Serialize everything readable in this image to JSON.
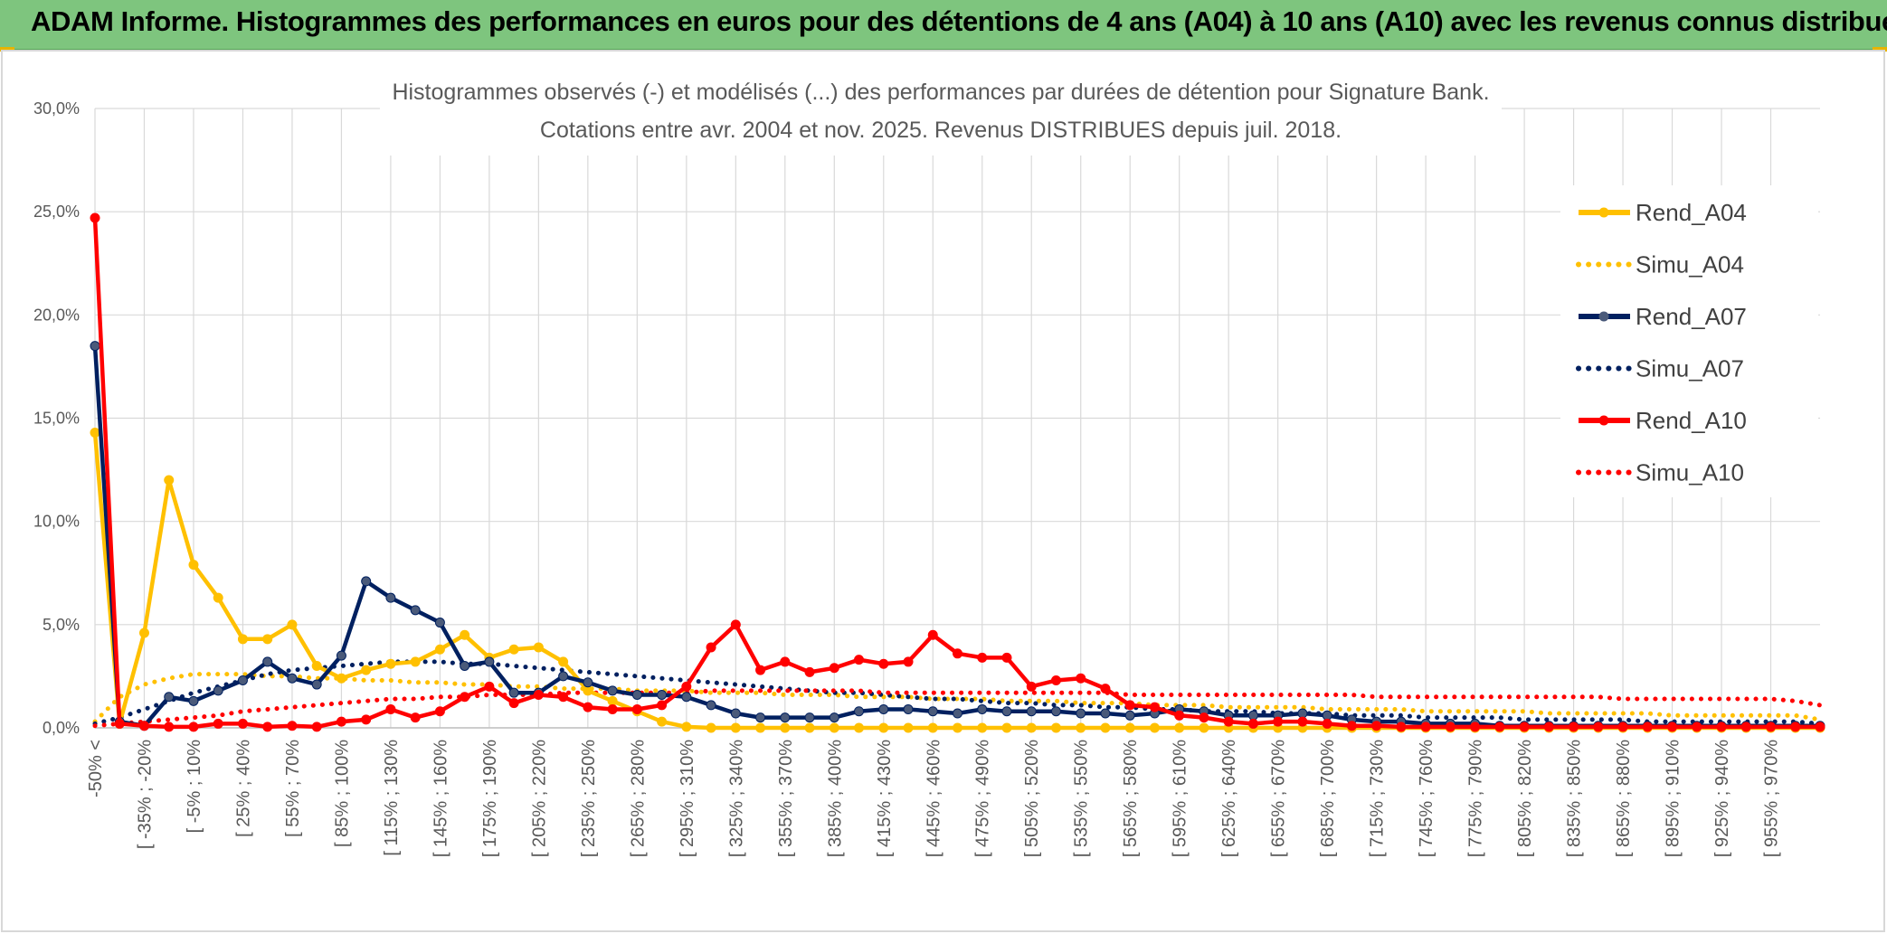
{
  "header": {
    "title": "ADAM Informe. Histogrammes des performances en euros pour des détentions de 4 ans (A04) à 10 ans (A10) avec les revenus connus distribués"
  },
  "chart_data": {
    "type": "line",
    "title_line1": "Histogrammes observés (-) et modélisés (...) des performances par durées de détention pour Signature Bank.",
    "title_line2": "Cotations entre avr. 2004 et nov. 2025. Revenus DISTRIBUES depuis juil. 2018.",
    "ylim": [
      0,
      30
    ],
    "yticks": [
      "0,0%",
      "5,0%",
      "10,0%",
      "15,0%",
      "20,0%",
      "25,0%",
      "30,0%"
    ],
    "grid": true,
    "legend_position": "right",
    "xtick_labels": [
      "-50% <",
      "[ -35% ; -20%",
      "[ -5% ; 10%",
      "[ 25% ; 40%",
      "[ 55% ; 70%",
      "[ 85% ; 100%",
      "[ 115% ; 130%",
      "[ 145% ; 160%",
      "[ 175% ; 190%",
      "[ 205% ; 220%",
      "[ 235% ; 250%",
      "[ 265% ; 280%",
      "[ 295% ; 310%",
      "[ 325% ; 340%",
      "[ 355% ; 370%",
      "[ 385% ; 400%",
      "[ 415% ; 430%",
      "[ 445% ; 460%",
      "[ 475% ; 490%",
      "[ 505% ; 520%",
      "[ 535% ; 550%",
      "[ 565% ; 580%",
      "[ 595% ; 610%",
      "[ 625% ; 640%",
      "[ 655% ; 670%",
      "[ 685% ; 700%",
      "[ 715% ; 730%",
      "[ 745% ; 760%",
      "[ 775% ; 790%",
      "[ 805% ; 820%",
      "[ 835% ; 850%",
      "[ 865% ; 880%",
      "[ 895% ; 910%",
      "[ 925% ; 940%",
      "[ 955% ; 970%"
    ],
    "series": [
      {
        "name": "Rend_A04",
        "style": "solid",
        "color": "#ffc000",
        "marker_color": "#ffc000",
        "values": [
          14.3,
          0.2,
          4.6,
          12.0,
          7.9,
          6.3,
          4.3,
          4.3,
          5.0,
          3.0,
          2.4,
          2.8,
          3.1,
          3.2,
          3.8,
          4.5,
          3.4,
          3.8,
          3.9,
          3.2,
          1.8,
          1.3,
          0.8,
          0.3,
          0.05,
          0,
          0,
          0,
          0,
          0,
          0,
          0,
          0,
          0,
          0,
          0,
          0,
          0,
          0,
          0,
          0,
          0,
          0,
          0,
          0,
          0,
          0,
          0,
          0,
          0,
          0,
          0,
          0,
          0,
          0,
          0,
          0,
          0,
          0,
          0,
          0,
          0,
          0,
          0,
          0,
          0,
          0,
          0,
          0,
          0,
          0
        ]
      },
      {
        "name": "Simu_A04",
        "style": "dotted",
        "color": "#ffc000",
        "values": [
          0.3,
          1.5,
          2.1,
          2.4,
          2.6,
          2.6,
          2.6,
          2.5,
          2.5,
          2.4,
          2.4,
          2.3,
          2.3,
          2.2,
          2.2,
          2.1,
          2.1,
          2.0,
          2.0,
          1.9,
          1.9,
          1.9,
          1.8,
          1.8,
          1.8,
          1.7,
          1.7,
          1.7,
          1.6,
          1.6,
          1.6,
          1.5,
          1.5,
          1.5,
          1.4,
          1.4,
          1.4,
          1.3,
          1.3,
          1.3,
          1.2,
          1.2,
          1.2,
          1.1,
          1.1,
          1.1,
          1.0,
          1.0,
          1.0,
          1.0,
          0.9,
          0.9,
          0.9,
          0.9,
          0.8,
          0.8,
          0.8,
          0.8,
          0.8,
          0.7,
          0.7,
          0.7,
          0.7,
          0.7,
          0.6,
          0.6,
          0.6,
          0.6,
          0.6,
          0.6,
          0.4
        ]
      },
      {
        "name": "Rend_A07",
        "style": "solid",
        "color": "#002060",
        "marker_color": "#4a5a7a",
        "values": [
          18.5,
          0.3,
          0.1,
          1.5,
          1.3,
          1.8,
          2.3,
          3.2,
          2.4,
          2.1,
          3.5,
          7.1,
          6.3,
          5.7,
          5.1,
          3.0,
          3.2,
          1.7,
          1.7,
          2.5,
          2.2,
          1.8,
          1.6,
          1.6,
          1.5,
          1.1,
          0.7,
          0.5,
          0.5,
          0.5,
          0.5,
          0.8,
          0.9,
          0.9,
          0.8,
          0.7,
          0.9,
          0.8,
          0.8,
          0.8,
          0.7,
          0.7,
          0.6,
          0.7,
          0.9,
          0.8,
          0.6,
          0.6,
          0.6,
          0.7,
          0.6,
          0.4,
          0.3,
          0.3,
          0.2,
          0.2,
          0.2,
          0.1,
          0.1,
          0.1,
          0.1,
          0.1,
          0.1,
          0.1,
          0.1,
          0.1,
          0.1,
          0.1,
          0.1,
          0.1,
          0.1
        ]
      },
      {
        "name": "Simu_A07",
        "style": "dotted",
        "color": "#002060",
        "values": [
          0.2,
          0.5,
          0.9,
          1.3,
          1.7,
          2.0,
          2.3,
          2.6,
          2.8,
          2.9,
          3.0,
          3.1,
          3.2,
          3.2,
          3.2,
          3.1,
          3.1,
          3.0,
          2.9,
          2.8,
          2.7,
          2.6,
          2.5,
          2.4,
          2.3,
          2.2,
          2.1,
          2.0,
          1.9,
          1.8,
          1.7,
          1.7,
          1.6,
          1.5,
          1.4,
          1.4,
          1.3,
          1.2,
          1.2,
          1.1,
          1.1,
          1.0,
          1.0,
          0.9,
          0.9,
          0.8,
          0.8,
          0.8,
          0.7,
          0.7,
          0.7,
          0.6,
          0.6,
          0.6,
          0.5,
          0.5,
          0.5,
          0.5,
          0.4,
          0.4,
          0.4,
          0.4,
          0.4,
          0.3,
          0.3,
          0.3,
          0.3,
          0.3,
          0.3,
          0.3,
          0.2
        ]
      },
      {
        "name": "Rend_A10",
        "style": "solid",
        "color": "#ff0000",
        "marker_color": "#ff0000",
        "values": [
          24.7,
          0.2,
          0.1,
          0.05,
          0.05,
          0.2,
          0.2,
          0.05,
          0.1,
          0.05,
          0.3,
          0.4,
          0.9,
          0.5,
          0.8,
          1.5,
          2.0,
          1.2,
          1.6,
          1.5,
          1.0,
          0.9,
          0.9,
          1.1,
          2.0,
          3.9,
          5.0,
          2.8,
          3.2,
          2.7,
          2.9,
          3.3,
          3.1,
          3.2,
          4.5,
          3.6,
          3.4,
          3.4,
          2.0,
          2.3,
          2.4,
          1.9,
          1.1,
          1.0,
          0.6,
          0.5,
          0.3,
          0.2,
          0.3,
          0.3,
          0.2,
          0.1,
          0.1,
          0.05,
          0.05,
          0.05,
          0.05,
          0.05,
          0.05,
          0.05,
          0.05,
          0.05,
          0.05,
          0.05,
          0.05,
          0.05,
          0.05,
          0.05,
          0.05,
          0.05,
          0.05
        ]
      },
      {
        "name": "Simu_A10",
        "style": "dotted",
        "color": "#ff0000",
        "values": [
          0.1,
          0.2,
          0.3,
          0.4,
          0.5,
          0.6,
          0.8,
          0.9,
          1.0,
          1.1,
          1.2,
          1.3,
          1.4,
          1.4,
          1.5,
          1.5,
          1.6,
          1.6,
          1.6,
          1.7,
          1.7,
          1.7,
          1.7,
          1.7,
          1.7,
          1.8,
          1.8,
          1.8,
          1.8,
          1.8,
          1.8,
          1.8,
          1.7,
          1.7,
          1.7,
          1.7,
          1.7,
          1.7,
          1.7,
          1.7,
          1.7,
          1.7,
          1.6,
          1.6,
          1.6,
          1.6,
          1.6,
          1.6,
          1.6,
          1.6,
          1.6,
          1.6,
          1.5,
          1.5,
          1.5,
          1.5,
          1.5,
          1.5,
          1.5,
          1.5,
          1.5,
          1.5,
          1.4,
          1.4,
          1.4,
          1.4,
          1.4,
          1.4,
          1.4,
          1.3,
          1.1
        ]
      }
    ]
  }
}
